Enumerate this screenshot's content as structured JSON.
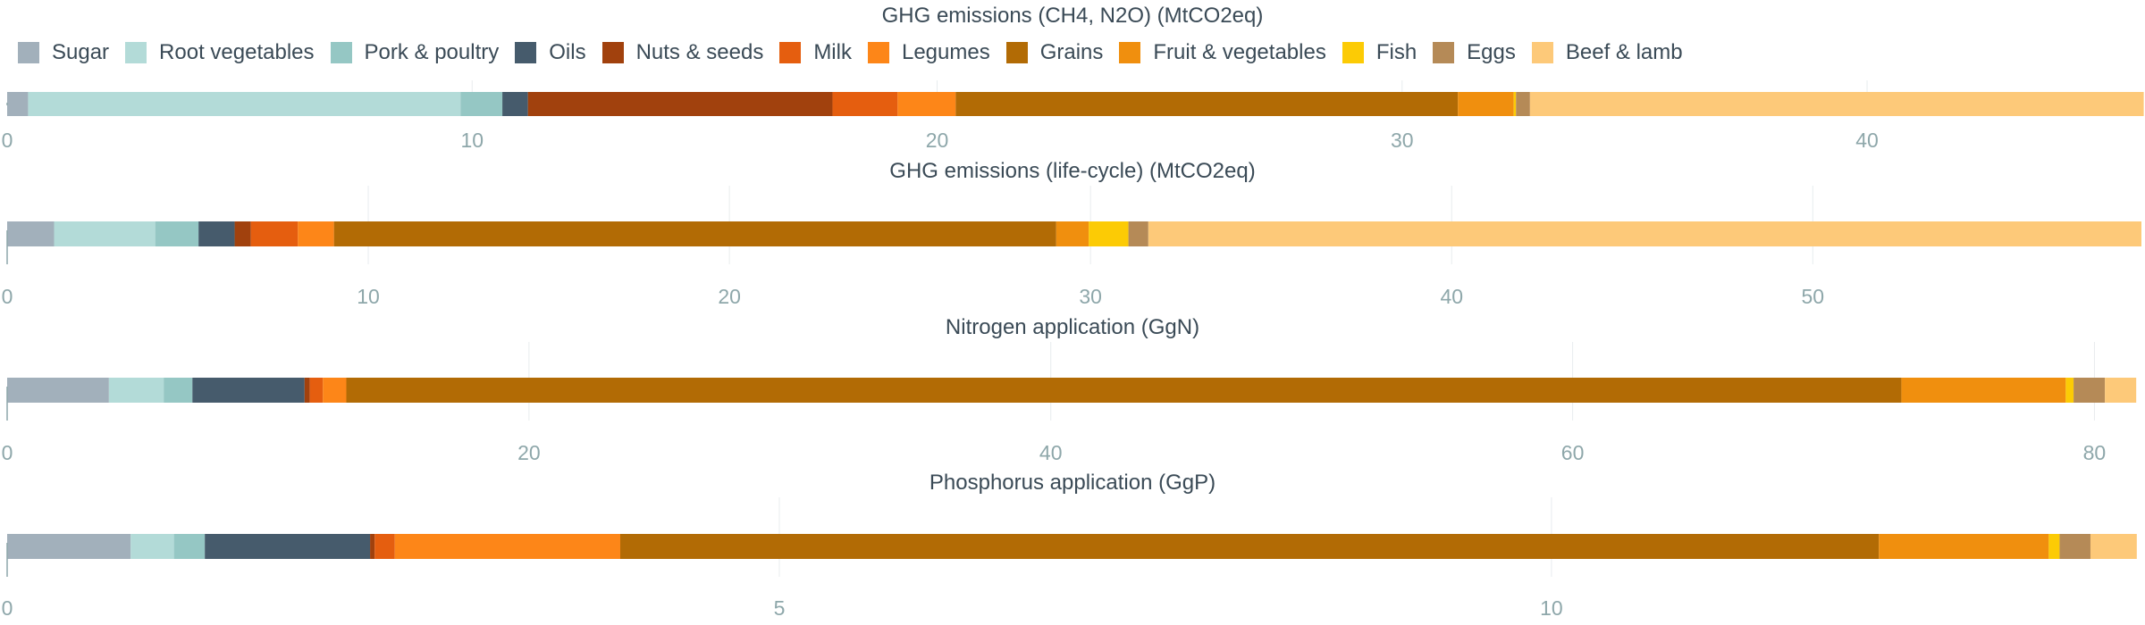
{
  "colors": {
    "Sugar": "#a2b0bb",
    "Root vegetables": "#b3dbd8",
    "Pork & poultry": "#95c7c4",
    "Oils": "#465b6c",
    "Nuts & seeds": "#a1410d",
    "Milk": "#e55e0f",
    "Legumes": "#fd8618",
    "Grains": "#b26b05",
    "Fruit & vegetables": "#f08f0e",
    "Fish": "#fccb05",
    "Eggs": "#b58a57",
    "Beef & lamb": "#fdc979"
  },
  "chart_data": [
    {
      "type": "bar",
      "orientation": "horizontal",
      "stacked": true,
      "title": "GHG emissions (CH4, N2O) (MtCO2eq)",
      "legend": "top-left",
      "xlim": [
        0,
        45.9
      ],
      "ticks": [
        0,
        10,
        20,
        30,
        40
      ],
      "categories": [
        "Sugar",
        "Root vegetables",
        "Pork & poultry",
        "Oils",
        "Nuts & seeds",
        "Milk",
        "Legumes",
        "Grains",
        "Fruit & vegetables",
        "Fish",
        "Eggs",
        "Beef & lamb"
      ],
      "values": [
        0.45,
        9.3,
        0.9,
        0.55,
        6.55,
        1.4,
        1.25,
        10.8,
        1.2,
        0.05,
        0.3,
        13.2
      ]
    },
    {
      "type": "bar",
      "orientation": "horizontal",
      "stacked": true,
      "title": "GHG emissions (life-cycle) (MtCO2eq)",
      "xlim": [
        0,
        59.1
      ],
      "ticks": [
        0,
        10,
        20,
        30,
        40,
        50
      ],
      "categories": [
        "Sugar",
        "Root vegetables",
        "Pork & poultry",
        "Oils",
        "Nuts & seeds",
        "Milk",
        "Legumes",
        "Grains",
        "Fruit & vegetables",
        "Fish",
        "Eggs",
        "Beef & lamb"
      ],
      "values": [
        1.3,
        2.8,
        1.2,
        1.0,
        0.45,
        1.3,
        1.0,
        20.0,
        0.9,
        1.1,
        0.55,
        27.5
      ]
    },
    {
      "type": "bar",
      "orientation": "horizontal",
      "stacked": true,
      "title": "Nitrogen application (GgN)",
      "xlim": [
        0,
        81.8
      ],
      "ticks": [
        0,
        20,
        40,
        60,
        80
      ],
      "categories": [
        "Sugar",
        "Root vegetables",
        "Pork & poultry",
        "Oils",
        "Nuts & seeds",
        "Milk",
        "Legumes",
        "Grains",
        "Fruit & vegetables",
        "Fish",
        "Eggs",
        "Beef & lamb"
      ],
      "values": [
        3.9,
        2.1,
        1.1,
        4.3,
        0.2,
        0.5,
        0.9,
        59.6,
        6.3,
        0.3,
        1.2,
        1.2
      ]
    },
    {
      "type": "bar",
      "orientation": "horizontal",
      "stacked": true,
      "title": "Phosphorus application (GgP)",
      "xlim": [
        0,
        13.82
      ],
      "ticks": [
        0,
        5,
        10
      ],
      "categories": [
        "Sugar",
        "Root vegetables",
        "Pork & poultry",
        "Oils",
        "Nuts & seeds",
        "Milk",
        "Legumes",
        "Grains",
        "Fruit & vegetables",
        "Fish",
        "Eggs",
        "Beef & lamb"
      ],
      "values": [
        0.8,
        0.28,
        0.2,
        1.07,
        0.03,
        0.13,
        1.46,
        8.15,
        1.1,
        0.07,
        0.2,
        0.3
      ]
    }
  ]
}
